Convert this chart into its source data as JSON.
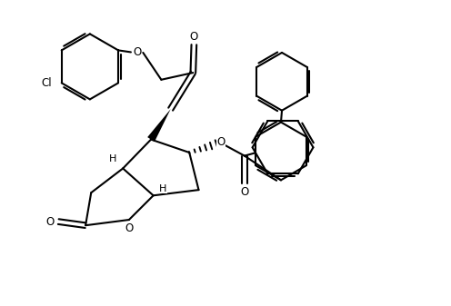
{
  "background_color": "#ffffff",
  "line_color": "#000000",
  "line_width": 1.5,
  "figsize": [
    4.96,
    3.37
  ],
  "dpi": 100,
  "xlim": [
    0,
    9.5
  ],
  "ylim": [
    0,
    6.5
  ]
}
